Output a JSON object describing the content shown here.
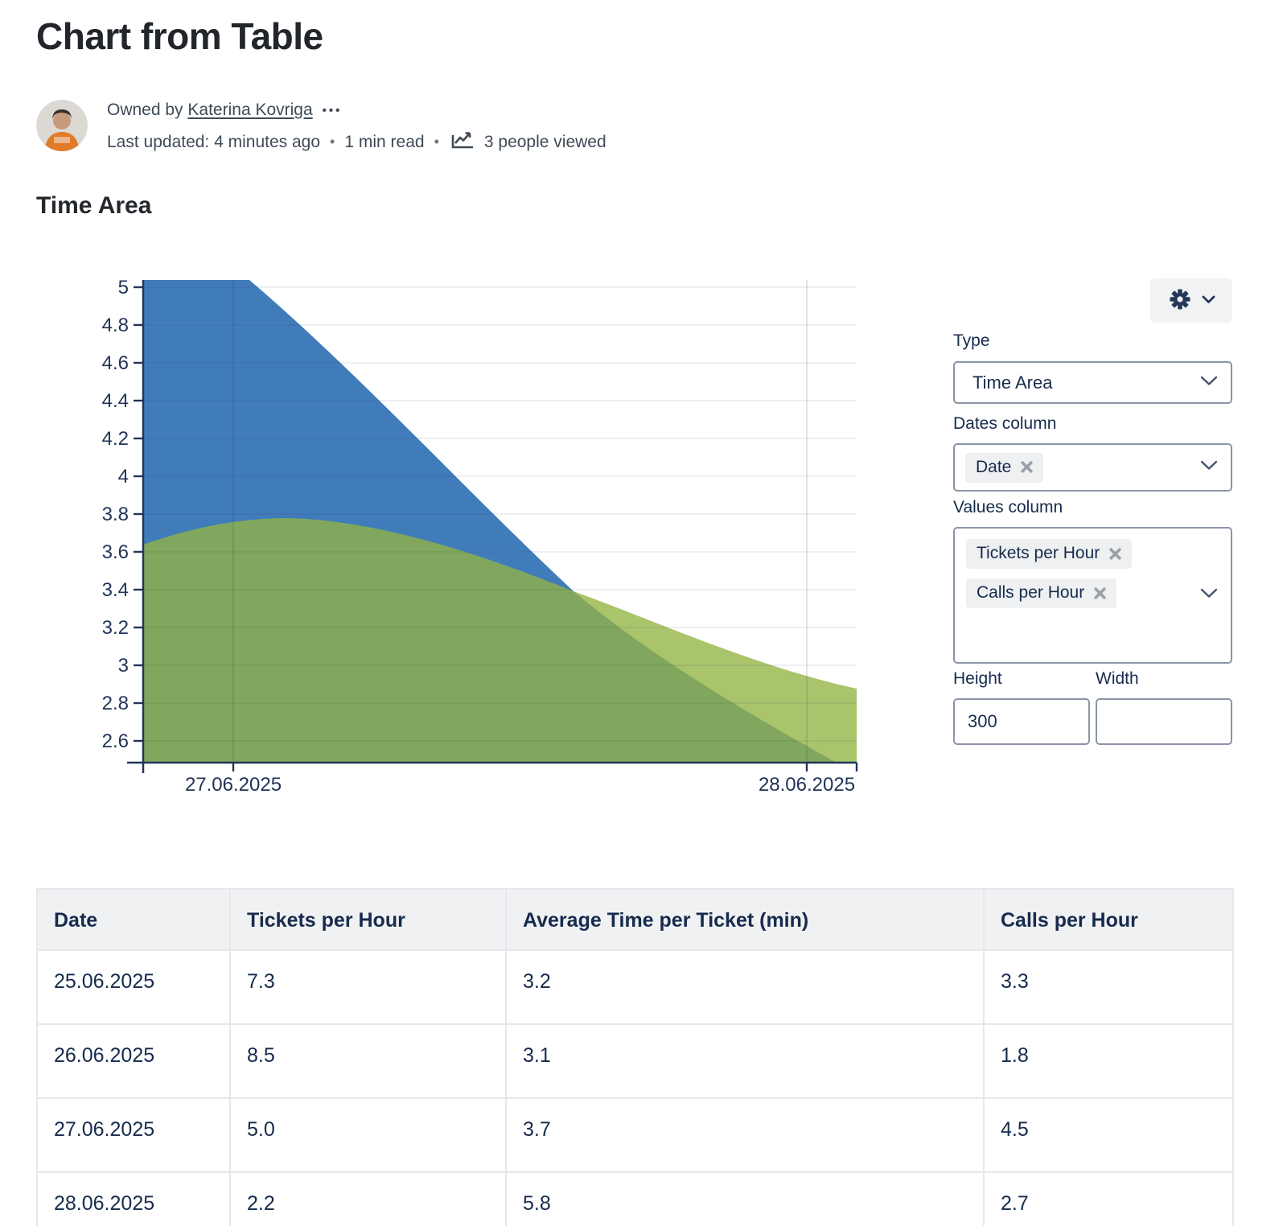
{
  "page": {
    "title": "Chart from Table"
  },
  "byline": {
    "owned_by_prefix": "Owned by",
    "owner": "Katerina Kovriga",
    "more_actions": "•••",
    "last_updated": "Last updated: 4 minutes ago",
    "separator": "•",
    "read_time": "1 min read",
    "views": "3 people viewed"
  },
  "section": {
    "heading": "Time Area"
  },
  "chart_data": {
    "type": "area",
    "title": "Time Area",
    "x": [
      "25.06.2025",
      "26.06.2025",
      "27.06.2025",
      "28.06.2025"
    ],
    "series": [
      {
        "name": "Tickets per Hour",
        "values": [
          7.3,
          8.5,
          5.0,
          2.2
        ]
      },
      {
        "name": "Calls per Hour",
        "values": [
          3.3,
          1.8,
          4.5,
          2.7
        ]
      }
    ],
    "visible_x_tick_labels": [
      "27.06.2025",
      "28.06.2025"
    ],
    "y_tick_labels": [
      "5",
      "4.8",
      "4.6",
      "4.4",
      "4.2",
      "4",
      "3.8",
      "3.6",
      "3.4",
      "3.2",
      "3",
      "2.8",
      "2.6"
    ],
    "ylim": [
      2.48,
      5.03
    ],
    "grid": true,
    "legend": false,
    "smoothing": "basis"
  },
  "settings": {
    "type_label": "Type",
    "type_value": "Time Area",
    "dates_label": "Dates column",
    "dates_tags": [
      {
        "label": "Date"
      }
    ],
    "values_label": "Values column",
    "values_tags": [
      {
        "label": "Tickets per Hour"
      },
      {
        "label": "Calls per Hour"
      }
    ],
    "height_label": "Height",
    "height_value": "300",
    "width_label": "Width",
    "width_value": ""
  },
  "table": {
    "columns": [
      "Date",
      "Tickets per Hour",
      "Average Time per Ticket (min)",
      "Calls per Hour"
    ],
    "rows": [
      [
        "25.06.2025",
        "7.3",
        "3.2",
        "3.3"
      ],
      [
        "26.06.2025",
        "8.5",
        "3.1",
        "1.8"
      ],
      [
        "27.06.2025",
        "5.0",
        "3.7",
        "4.5"
      ],
      [
        "28.06.2025",
        "2.2",
        "5.8",
        "2.7"
      ]
    ]
  },
  "colors": {
    "series_blue": "#417cba",
    "series_green_overlay": "rgba(146,179,66,0.78)",
    "green_light_result": "#abc46e",
    "green_dark_result": "#80a651",
    "axis": "#223458",
    "grid_overlay_h": "rgba(30,50,85,0.10)",
    "grid_overlay_v": "rgba(30,50,85,0.17)",
    "panel_border": "#8b95a7",
    "header_bg": "#f0f1f2"
  }
}
